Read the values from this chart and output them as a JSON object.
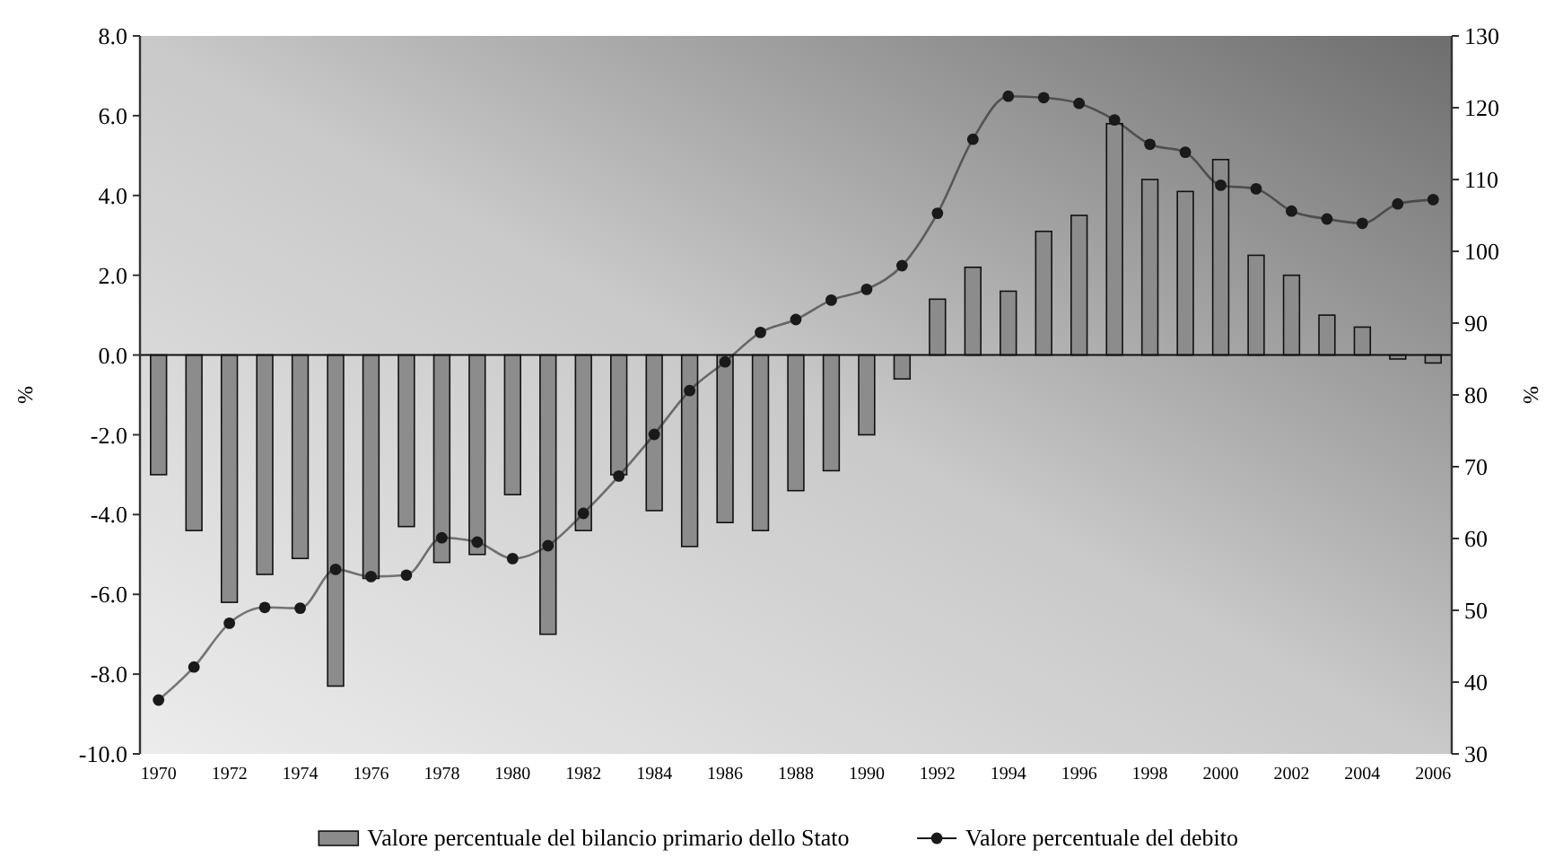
{
  "chart_data": {
    "type": "bar",
    "ylabel": "%",
    "y2label": "%",
    "categories": [
      "1970",
      null,
      "1972",
      null,
      "1974",
      null,
      "1976",
      null,
      "1978",
      null,
      "1980",
      null,
      "1982",
      null,
      "1984",
      null,
      "1986",
      null,
      "1988",
      null,
      "1990",
      null,
      "1992",
      null,
      "1994",
      null,
      "1996",
      null,
      "1998",
      null,
      "2000",
      null,
      "2002",
      null,
      "2004",
      null,
      "2006"
    ],
    "series": [
      {
        "name": "Valore percentuale del bilancio primario dello Stato",
        "color": "#8c8c8c",
        "values": [
          -3.0,
          -4.4,
          -6.2,
          -5.5,
          -5.1,
          -8.3,
          -5.6,
          -4.3,
          -5.2,
          -5.0,
          -3.5,
          -7.0,
          -4.4,
          -3.0,
          -3.9,
          -4.8,
          -4.2,
          -4.4,
          -3.4,
          -2.9,
          -2.0,
          -0.6,
          1.4,
          2.2,
          1.6,
          3.1,
          3.5,
          5.8,
          4.4,
          4.1,
          4.9,
          2.5,
          2.0,
          1.0,
          0.7,
          -0.1,
          -0.2
        ]
      },
      {
        "name": "Valore percentuale del debito",
        "type": "line",
        "axis": "y2",
        "color": "#1a1a1a",
        "marker": "circle",
        "values": [
          37.5,
          42.1,
          48.2,
          50.4,
          50.3,
          55.7,
          54.7,
          54.9,
          60.1,
          59.5,
          57.2,
          59.0,
          63.5,
          68.7,
          74.5,
          80.6,
          84.6,
          88.7,
          90.5,
          93.2,
          94.7,
          98.0,
          105.3,
          115.6,
          121.6,
          121.4,
          120.6,
          118.3,
          114.9,
          113.8,
          109.2,
          108.7,
          105.6,
          104.5,
          103.9,
          106.6,
          107.2
        ]
      }
    ],
    "ylim": [
      -10,
      8
    ],
    "yticks": [
      {
        "value": -10,
        "label": "-10.0"
      },
      {
        "value": -8,
        "label": "-8.0"
      },
      {
        "value": -6,
        "label": "-6.0"
      },
      {
        "value": -4,
        "label": "-4.0"
      },
      {
        "value": -2,
        "label": "-2.0"
      },
      {
        "value": 0,
        "label": "0.0"
      },
      {
        "value": 2,
        "label": "2.0"
      },
      {
        "value": 4,
        "label": "4.0"
      },
      {
        "value": 6,
        "label": "6.0"
      },
      {
        "value": 8,
        "label": "8.0"
      }
    ],
    "y2lim": [
      30,
      130
    ],
    "y2ticks": [
      30,
      40,
      50,
      60,
      70,
      80,
      90,
      100,
      110,
      120,
      130
    ],
    "legend": "bottom"
  }
}
